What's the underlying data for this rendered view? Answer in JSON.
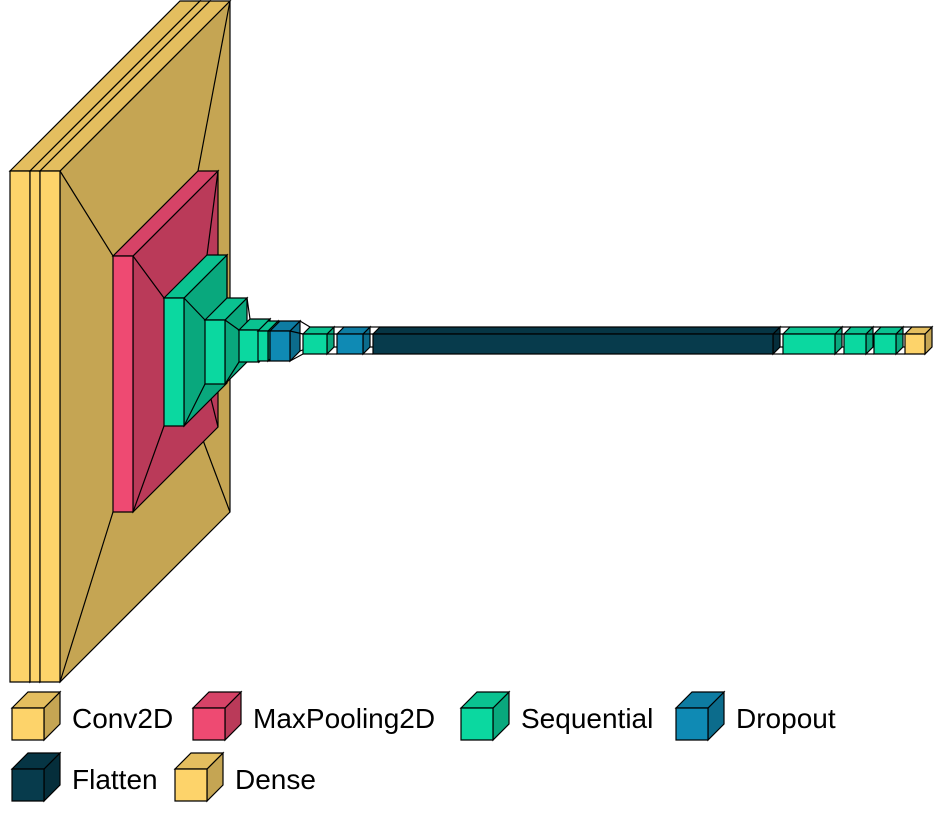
{
  "colors": {
    "Conv2D": "#FDD36A",
    "MaxPooling2D": "#EE4A72",
    "Sequential": "#0BD8A0",
    "Dropout": "#0F8AB4",
    "Flatten": "#073B4C",
    "Dense": "#FDD36A",
    "outline": "#000000"
  },
  "layers": [
    {
      "type": "Conv2D"
    },
    {
      "type": "Conv2D"
    },
    {
      "type": "Conv2D"
    },
    {
      "type": "MaxPooling2D"
    },
    {
      "type": "Sequential"
    },
    {
      "type": "Sequential"
    },
    {
      "type": "Sequential"
    },
    {
      "type": "Sequential"
    },
    {
      "type": "Dropout"
    },
    {
      "type": "Sequential"
    },
    {
      "type": "Dropout"
    },
    {
      "type": "Flatten"
    },
    {
      "type": "Sequential"
    },
    {
      "type": "Sequential"
    },
    {
      "type": "Sequential"
    },
    {
      "type": "Dense"
    }
  ],
  "legend": [
    {
      "label": "Conv2D",
      "type": "Conv2D"
    },
    {
      "label": "MaxPooling2D",
      "type": "MaxPooling2D"
    },
    {
      "label": "Sequential",
      "type": "Sequential"
    },
    {
      "label": "Dropout",
      "type": "Dropout"
    },
    {
      "label": "Flatten",
      "type": "Flatten"
    },
    {
      "label": "Dense",
      "type": "Dense"
    }
  ]
}
